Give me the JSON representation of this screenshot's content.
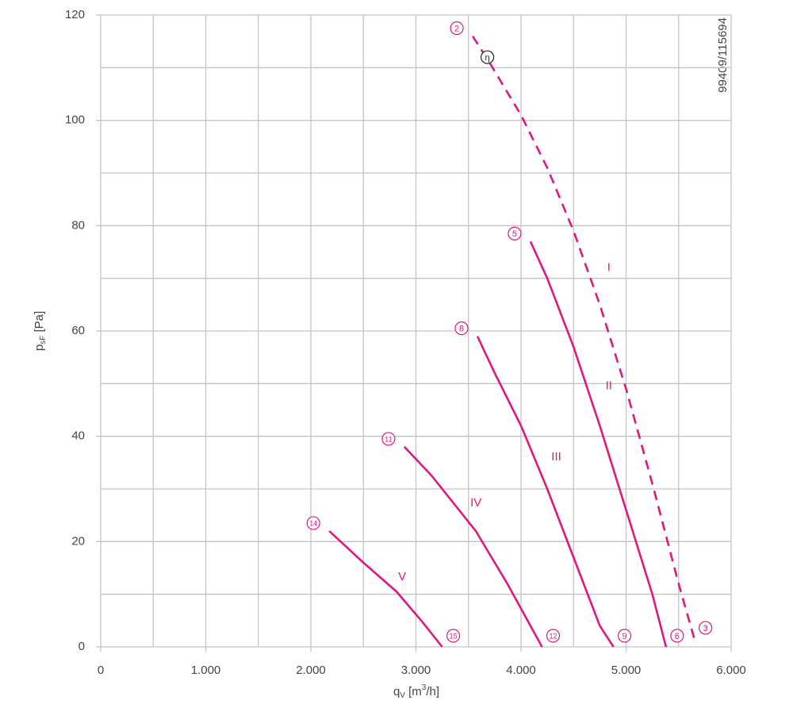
{
  "chart_data": {
    "type": "line",
    "code": "99409/115694",
    "x_label": {
      "main": "q",
      "sub": "V",
      "unit_open": " [m",
      "sup": "3",
      "unit_close": "/h]"
    },
    "y_label": {
      "main": "p",
      "sub": "sF",
      "unit": " [Pa]"
    },
    "xlim": [
      0,
      6000
    ],
    "ylim": [
      0,
      120
    ],
    "xticks": [
      0,
      {
        "value": 1000,
        "label": "1.000"
      },
      {
        "value": 2000,
        "label": "2.000"
      },
      {
        "value": 3000,
        "label": "3.000"
      },
      {
        "value": 4000,
        "label": "4.000"
      },
      {
        "value": 5000,
        "label": "5.000"
      },
      {
        "value": 6000,
        "label": "6.000"
      }
    ],
    "yticks": [
      0,
      20,
      40,
      60,
      80,
      100,
      120
    ],
    "grid": true,
    "color": "#e0177e",
    "series": [
      {
        "name": "I",
        "dashed": true,
        "start_label": "2",
        "end_label": "3",
        "x": [
          3540,
          3700,
          4000,
          4250,
          4500,
          4750,
          5000,
          5250,
          5500,
          5650
        ],
        "values": [
          116,
          111,
          101,
          91,
          79,
          65,
          49,
          31,
          12,
          1.5
        ]
      },
      {
        "name": "II",
        "dashed": false,
        "start_label": "5",
        "end_label": "6",
        "x": [
          4090,
          4250,
          4500,
          4750,
          5000,
          5250,
          5380
        ],
        "values": [
          77,
          70,
          57,
          42,
          26,
          10,
          0
        ]
      },
      {
        "name": "III",
        "dashed": false,
        "start_label": "8",
        "end_label": "9",
        "x": [
          3585,
          3750,
          4000,
          4250,
          4500,
          4750,
          4880
        ],
        "values": [
          59,
          52,
          42,
          30,
          17,
          4,
          0
        ]
      },
      {
        "name": "IV",
        "dashed": false,
        "start_label": "11",
        "end_label": "12",
        "x": [
          2890,
          3150,
          3570,
          3870,
          4200
        ],
        "values": [
          38,
          32.5,
          22,
          12,
          0
        ]
      },
      {
        "name": "V",
        "dashed": false,
        "start_label": "14",
        "end_label": "15",
        "x": [
          2175,
          2500,
          2815,
          3050,
          3250
        ],
        "values": [
          22,
          16,
          10.5,
          5,
          0
        ]
      }
    ],
    "annotations": [
      {
        "text": "η",
        "x": 3680,
        "y": 112
      }
    ]
  }
}
